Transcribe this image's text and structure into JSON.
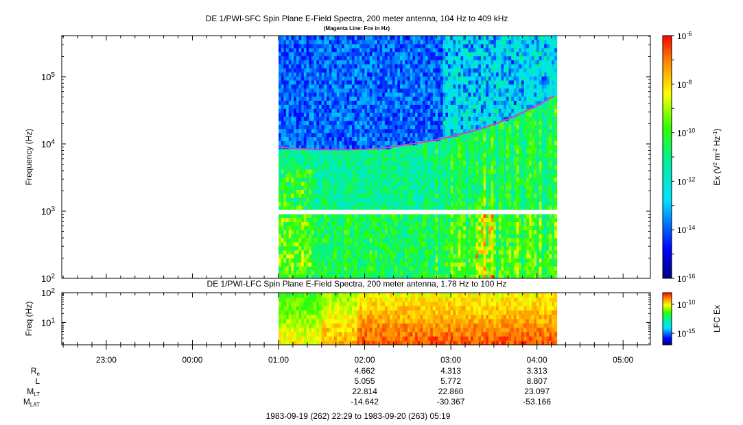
{
  "chart_data": [
    {
      "type": "heatmap",
      "title": "DE 1/PWI-SFC  Spin Plane E-Field Spectra, 200 meter antenna, 104 Hz to 409 kHz",
      "subtitle": "(Magenta Line: Fce in Hz)",
      "ylabel": "Frequency (Hz)",
      "yscale": "log",
      "ylim": [
        100,
        409000
      ],
      "yticks": [
        {
          "value": 100,
          "base": "10",
          "exp": "2"
        },
        {
          "value": 1000,
          "base": "10",
          "exp": "3"
        },
        {
          "value": 10000,
          "base": "10",
          "exp": "4"
        },
        {
          "value": 100000,
          "base": "10",
          "exp": "5"
        }
      ],
      "data_time_range_hours": [
        1.0,
        4.23
      ],
      "data_gap_hz": [
        900,
        1050
      ],
      "colorbar": {
        "label": "Ex (V² m⁻² Hz⁻¹)",
        "label_parts": [
          "Ex (V",
          "2",
          " m",
          "-2",
          " Hz",
          "-1",
          ")"
        ],
        "scale": "log",
        "range": [
          1e-16,
          1e-06
        ],
        "ticks": [
          {
            "value": 1e-06,
            "base": "10",
            "exp": "-6"
          },
          {
            "value": 1e-08,
            "base": "10",
            "exp": "-8"
          },
          {
            "value": 1e-10,
            "base": "10",
            "exp": "-10"
          },
          {
            "value": 1e-12,
            "base": "10",
            "exp": "-12"
          },
          {
            "value": 1e-14,
            "base": "10",
            "exp": "-14"
          },
          {
            "value": 1e-16,
            "base": "10",
            "exp": "-16"
          }
        ]
      },
      "fce_line": {
        "color": "#d23cd2",
        "time_hours": [
          1.0,
          1.25,
          1.5,
          1.75,
          2.0,
          2.25,
          2.5,
          2.75,
          3.0,
          3.25,
          3.5,
          3.75,
          4.0,
          4.2
        ],
        "freq_hz": [
          9000,
          8500,
          8200,
          8200,
          8300,
          8800,
          9800,
          11000,
          12800,
          15500,
          19500,
          26000,
          37000,
          52000
        ]
      }
    },
    {
      "type": "heatmap",
      "title": "DE 1/PWI-LFC  Spin Plane E-Field Spectra, 200 meter antenna, 1.78 Hz to 100 Hz",
      "ylabel": "Freq (Hz)",
      "yscale": "log",
      "ylim": [
        1.78,
        100
      ],
      "yticks": [
        {
          "value": 10,
          "base": "10",
          "exp": "1"
        },
        {
          "value": 100,
          "base": "10",
          "exp": "2"
        }
      ],
      "data_time_range_hours": [
        1.0,
        4.23
      ],
      "colorbar": {
        "label": "LFC Ex",
        "scale": "log",
        "range": [
          1e-17,
          1e-08
        ],
        "ticks": [
          {
            "value": 1e-10,
            "base": "10",
            "exp": "-10"
          },
          {
            "value": 1e-15,
            "base": "10",
            "exp": "-15"
          }
        ]
      }
    }
  ],
  "time_axis": {
    "start_hours": -1.517,
    "end_hours": 5.317,
    "major_ticks": [
      {
        "hours": -1,
        "label": "23:00"
      },
      {
        "hours": 0,
        "label": "00:00"
      },
      {
        "hours": 1,
        "label": "01:00"
      },
      {
        "hours": 2,
        "label": "02:00"
      },
      {
        "hours": 3,
        "label": "03:00"
      },
      {
        "hours": 4,
        "label": "04:00"
      },
      {
        "hours": 5,
        "label": "05:00"
      }
    ]
  },
  "ephemeris": {
    "rows": [
      {
        "name": "R",
        "sub": "e",
        "values": [
          "4.662",
          "4.313",
          "3.313"
        ]
      },
      {
        "name": "L",
        "sub": "",
        "values": [
          "5.055",
          "5.772",
          "8.807"
        ]
      },
      {
        "name": "M",
        "sub": "LT",
        "values": [
          "22.814",
          "22.860",
          "23.097"
        ]
      },
      {
        "name": "M",
        "sub": "LAT",
        "values": [
          "-14.642",
          "-30.367",
          "-53.166"
        ]
      }
    ],
    "at_hours": [
      2,
      3,
      4
    ]
  },
  "time_range_label": "1983-09-19 (262) 22:29 to 1983-09-20 (263) 05:19"
}
